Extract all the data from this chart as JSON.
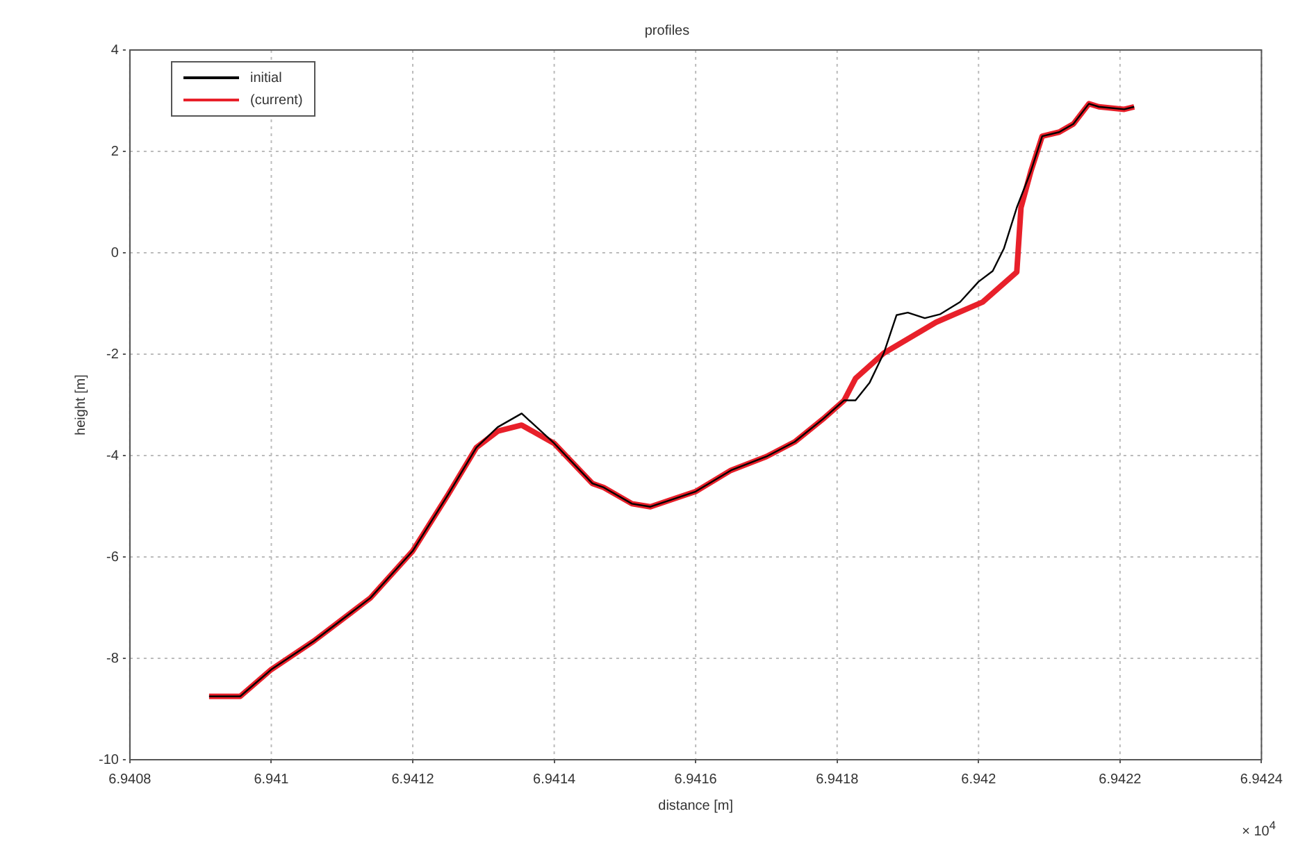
{
  "chart_data": {
    "type": "line",
    "title": "profiles",
    "xlabel": "distance [m]",
    "ylabel": "height [m]",
    "annotations": [
      "× 10$^{4}$"
    ],
    "xlim": [
      6.9408,
      6.9424
    ],
    "xticks": [
      6.9408,
      6.941,
      6.9412,
      6.9414,
      6.9416,
      6.9418,
      6.942,
      6.9422,
      6.9424
    ],
    "ylim": [
      -10,
      4
    ],
    "yticks": [
      -10,
      -8,
      -6,
      -4,
      -2,
      0,
      2,
      4
    ],
    "grid": true,
    "legend": "top left",
    "line_style": "solid",
    "marker": "none",
    "series": [
      {
        "name": "initial",
        "color": "#000000",
        "x": [
          6.940912,
          6.940956,
          6.941,
          6.94106,
          6.94114,
          6.9412,
          6.94125,
          6.94129,
          6.94132,
          6.941354,
          6.9414,
          6.941454,
          6.94147,
          6.94151,
          6.941536,
          6.94157,
          6.9416,
          6.94165,
          6.9417,
          6.94174,
          6.94178,
          6.94181,
          6.941826,
          6.941846,
          6.941866,
          6.941884,
          6.9419,
          6.941924,
          6.941946,
          6.941974,
          6.942,
          6.94202,
          6.942036,
          6.942054,
          6.942074,
          6.94209,
          6.942114,
          6.942134,
          6.942156,
          6.94217,
          6.942206,
          6.94222
        ],
        "values": [
          -8.75,
          -8.75,
          -8.22,
          -7.66,
          -6.81,
          -5.88,
          -4.77,
          -3.84,
          -3.44,
          -3.17,
          -3.76,
          -4.55,
          -4.63,
          -4.95,
          -5.01,
          -4.85,
          -4.71,
          -4.29,
          -4.02,
          -3.73,
          -3.28,
          -2.91,
          -2.91,
          -2.56,
          -1.98,
          -1.23,
          -1.18,
          -1.29,
          -1.21,
          -0.97,
          -0.57,
          -0.36,
          0.09,
          0.89,
          1.61,
          2.3,
          2.38,
          2.54,
          2.94,
          2.88,
          2.83,
          2.88
        ]
      },
      {
        "name": "(current)",
        "color": "#e8202a",
        "x": [
          6.940912,
          6.940956,
          6.941,
          6.94106,
          6.94114,
          6.9412,
          6.94125,
          6.94129,
          6.94132,
          6.941354,
          6.9414,
          6.941454,
          6.94147,
          6.94151,
          6.941536,
          6.94157,
          6.9416,
          6.94165,
          6.9417,
          6.94174,
          6.94178,
          6.94181,
          6.941826,
          6.941866,
          6.94194,
          6.942006,
          6.942054,
          6.94206,
          6.942074,
          6.94209,
          6.942114,
          6.942134,
          6.942156,
          6.94217,
          6.942206,
          6.94222
        ],
        "values": [
          -8.75,
          -8.75,
          -8.22,
          -7.66,
          -6.81,
          -5.88,
          -4.77,
          -3.84,
          -3.52,
          -3.4,
          -3.76,
          -4.55,
          -4.63,
          -4.95,
          -5.01,
          -4.85,
          -4.71,
          -4.29,
          -4.02,
          -3.73,
          -3.28,
          -2.91,
          -2.48,
          -1.98,
          -1.37,
          -0.97,
          -0.38,
          0.89,
          1.61,
          2.3,
          2.38,
          2.54,
          2.94,
          2.88,
          2.83,
          2.88
        ]
      }
    ]
  }
}
